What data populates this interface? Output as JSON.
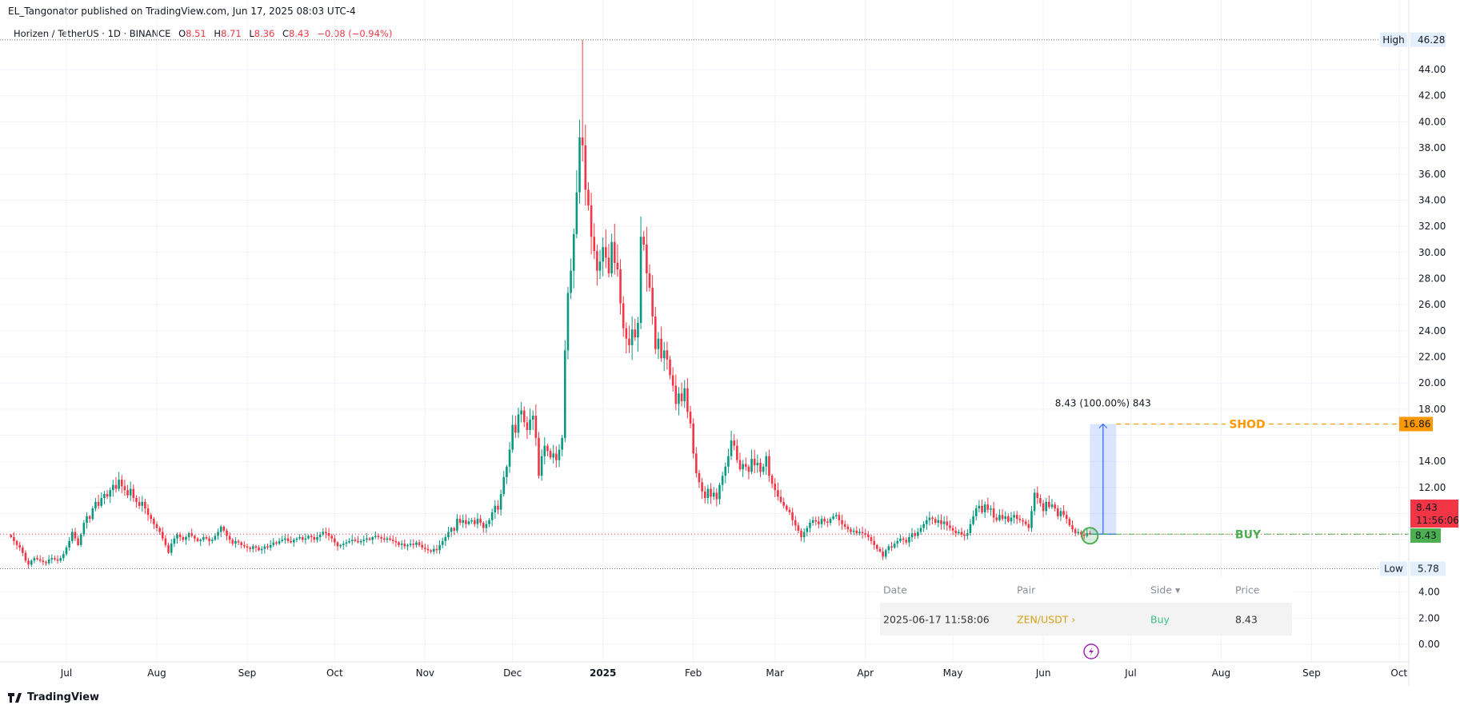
{
  "publisher_line": "EL_Tangonator published on TradingView.com, Jun 17, 2025 08:03 UTC-4",
  "legend": {
    "symbol": "Horizen / TetherUS · 1D · BINANCE",
    "open_label": "O",
    "open": "8.51",
    "high_label": "H",
    "high": "8.71",
    "low_label": "L",
    "low": "8.36",
    "close_label": "C",
    "close": "8.43",
    "change": "−0.08 (−0.94%)"
  },
  "colors": {
    "up": "#089981",
    "down": "#f23645",
    "target": "#ff9800",
    "buy": "#4caf50",
    "measure": "#2962ff",
    "grid": "#f0f3fa"
  },
  "chart_data": {
    "type": "candlestick",
    "title": "Horizen / TetherUS · 1D · BINANCE",
    "ylim": [
      0,
      46.28
    ],
    "y_tick_step": 2,
    "y_tick_max": 44,
    "grid": true,
    "x_ticks": [
      {
        "label": "Jul",
        "date": "2024-07-01"
      },
      {
        "label": "Aug",
        "date": "2024-08-01"
      },
      {
        "label": "Sep",
        "date": "2024-09-01"
      },
      {
        "label": "Oct",
        "date": "2024-10-01"
      },
      {
        "label": "Nov",
        "date": "2024-11-01"
      },
      {
        "label": "Dec",
        "date": "2024-12-01"
      },
      {
        "label": "2025",
        "date": "2025-01-01"
      },
      {
        "label": "Feb",
        "date": "2025-02-01"
      },
      {
        "label": "Mar",
        "date": "2025-03-01"
      },
      {
        "label": "Apr",
        "date": "2025-04-01"
      },
      {
        "label": "May",
        "date": "2025-05-01"
      },
      {
        "label": "Jun",
        "date": "2025-06-01"
      },
      {
        "label": "Jul",
        "date": "2025-07-01"
      },
      {
        "label": "Aug",
        "date": "2025-08-01"
      },
      {
        "label": "Sep",
        "date": "2025-09-01"
      },
      {
        "label": "Oct",
        "date": "2025-10-01"
      }
    ],
    "daily_closes_by_month": [
      {
        "month": "2024-06",
        "from_day": 12,
        "close": [
          8.2,
          7.9,
          7.6,
          7.4,
          7.0,
          6.4,
          6.1,
          6.4,
          6.6,
          6.5,
          6.4,
          6.3,
          6.2,
          6.5,
          6.6,
          6.5,
          6.4,
          6.6,
          6.9
        ]
      },
      {
        "month": "2024-07",
        "from_day": 1,
        "close": [
          7.4,
          7.9,
          8.6,
          8.1,
          7.6,
          8.4,
          9.3,
          9.8,
          9.6,
          10.4,
          10.9,
          10.6,
          11.2,
          11.5,
          11.3,
          11.8,
          12.2,
          11.9,
          12.6,
          12.1,
          11.8,
          11.4,
          11.9,
          11.2,
          10.9,
          10.6,
          10.9,
          10.4,
          9.9,
          9.6,
          9.2
        ]
      },
      {
        "month": "2024-08",
        "from_day": 1,
        "close": [
          8.9,
          8.6,
          8.1,
          7.6,
          7.0,
          7.7,
          8.1,
          8.4,
          8.2,
          8.0,
          8.2,
          8.5,
          8.3,
          8.1,
          7.9,
          8.0,
          8.2,
          8.1,
          7.9,
          8.0,
          8.3,
          8.6,
          9.0,
          8.7,
          8.3,
          8.0,
          7.7,
          7.9,
          7.8,
          7.6,
          7.5
        ]
      },
      {
        "month": "2024-09",
        "from_day": 1,
        "close": [
          7.4,
          7.3,
          7.5,
          7.4,
          7.2,
          7.3,
          7.5,
          7.4,
          7.6,
          7.8,
          7.7,
          7.9,
          8.0,
          8.1,
          7.9,
          7.8,
          8.0,
          8.1,
          8.2,
          8.0,
          8.1,
          8.3,
          8.2,
          8.0,
          8.2,
          8.4,
          8.6,
          8.5,
          8.3,
          8.1
        ]
      },
      {
        "month": "2024-10",
        "from_day": 1,
        "close": [
          7.8,
          7.5,
          7.6,
          7.7,
          7.8,
          7.9,
          8.0,
          7.9,
          7.8,
          7.9,
          8.0,
          8.1,
          8.0,
          8.2,
          8.3,
          8.2,
          8.1,
          8.0,
          8.1,
          8.0,
          7.9,
          7.8,
          7.6,
          7.7,
          7.5,
          7.6,
          7.7,
          7.6,
          7.8,
          7.6,
          7.4
        ]
      },
      {
        "month": "2024-11",
        "from_day": 1,
        "close": [
          7.3,
          7.2,
          7.1,
          7.3,
          7.2,
          7.6,
          7.9,
          8.2,
          8.6,
          8.9,
          8.7,
          9.6,
          9.3,
          9.5,
          9.2,
          9.4,
          9.5,
          9.2,
          9.6,
          9.3,
          8.9,
          9.2,
          9.5,
          10.1,
          10.6,
          10.3,
          11.5,
          12.8,
          13.6,
          14.9
        ]
      },
      {
        "month": "2024-12",
        "from_day": 1,
        "close": [
          16.8,
          16.2,
          17.6,
          17.9,
          17.0,
          16.4,
          17.2,
          17.5,
          15.8,
          12.9,
          14.4,
          15.2,
          14.8,
          14.3,
          14.6,
          14.1,
          14.9,
          15.8,
          22.5,
          26.9,
          28.6,
          31.4,
          34.6,
          38.8,
          38.2,
          34.8,
          33.6,
          31.2,
          30.1,
          28.6,
          29.3
        ]
      },
      {
        "month": "2025-01",
        "from_day": 1,
        "close": [
          30.4,
          29.6,
          28.4,
          30.8,
          29.2,
          28.7,
          26.1,
          24.2,
          23.4,
          22.9,
          24.1,
          23.5,
          24.6,
          31.2,
          30.6,
          28.4,
          27.3,
          25.1,
          22.6,
          23.4,
          21.9,
          22.5,
          21.8,
          20.6,
          19.8,
          18.4,
          19.2,
          18.6,
          19.6,
          17.8,
          16.9
        ]
      },
      {
        "month": "2025-02",
        "from_day": 1,
        "close": [
          14.6,
          13.1,
          12.4,
          11.7,
          11.2,
          11.9,
          11.3,
          11.6,
          11.1,
          12.2,
          12.9,
          13.6,
          14.4,
          15.6,
          15.2,
          14.1,
          13.4,
          13.8,
          13.6,
          13.2,
          14.2,
          13.7,
          13.9,
          13.2,
          13.6,
          14.4,
          12.9,
          12.3
        ]
      },
      {
        "month": "2025-03",
        "from_day": 1,
        "close": [
          11.8,
          11.3,
          10.9,
          10.6,
          10.3,
          10.1,
          9.5,
          9.1,
          8.7,
          8.2,
          8.6,
          8.9,
          9.3,
          9.5,
          9.4,
          9.2,
          9.6,
          9.4,
          9.3,
          9.6,
          9.8,
          9.9,
          9.5,
          9.2,
          9.0,
          8.8,
          8.6,
          8.7,
          8.5,
          8.6,
          8.5
        ]
      },
      {
        "month": "2025-04",
        "from_day": 1,
        "close": [
          8.4,
          8.2,
          7.9,
          7.6,
          7.3,
          7.1,
          6.7,
          7.2,
          7.5,
          7.4,
          7.7,
          7.9,
          8.1,
          8.0,
          7.8,
          8.2,
          8.5,
          8.3,
          8.6,
          8.9,
          9.2,
          9.5,
          9.7,
          9.6,
          9.3,
          9.5,
          9.2,
          9.4,
          9.1,
          8.9
        ]
      },
      {
        "month": "2025-05",
        "from_day": 1,
        "close": [
          8.7,
          8.5,
          8.6,
          8.4,
          8.3,
          8.5,
          9.2,
          9.8,
          10.4,
          10.6,
          10.1,
          10.7,
          10.3,
          10.4,
          9.7,
          9.5,
          9.9,
          9.6,
          9.8,
          9.4,
          9.7,
          9.9,
          9.6,
          9.5,
          9.4,
          9.2,
          8.9,
          10.2,
          11.6,
          11.2,
          10.8
        ]
      },
      {
        "month": "2025-06",
        "from_day": 1,
        "close": [
          10.2,
          10.9,
          10.5,
          10.7,
          10.4,
          9.8,
          10.2,
          9.9,
          9.6,
          9.1,
          8.8,
          8.5,
          8.6,
          8.4,
          8.3,
          8.51,
          8.43
        ]
      }
    ],
    "last_candle": {
      "date": "2025-06-17",
      "open": 8.51,
      "high": 8.71,
      "low": 8.36,
      "close": 8.43
    },
    "extremes": {
      "high": {
        "label": "High",
        "value": 46.28,
        "date": "2024-12-25"
      },
      "low": {
        "label": "Low",
        "value": 5.78,
        "date": "2024-06-18"
      }
    },
    "current_price": {
      "value": 8.43,
      "label": "8.43",
      "countdown": "11:56:06"
    },
    "annotations": {
      "target_line": {
        "label": "SHOD",
        "price": 16.86,
        "price_label": "16.86"
      },
      "buy_line": {
        "label": "BUY",
        "price": 8.43,
        "price_label": "8.43",
        "date": "2025-06-17"
      },
      "measure": {
        "label": "8.43 (100.00%) 843",
        "from_price": 8.43,
        "to_price": 16.86,
        "from_date": "2025-06-17",
        "to_date": "2025-06-26"
      }
    }
  },
  "trade_table": {
    "headers": {
      "date": "Date",
      "pair": "Pair",
      "side": "Side ▾",
      "price": "Price"
    },
    "row": {
      "date": "2025-06-17 11:58:06",
      "pair": "ZEN/USDT ›",
      "side": "Buy",
      "price": "8.43"
    }
  },
  "footer": {
    "logo_text": "TradingView",
    "icon": "tradingview-logo-icon"
  },
  "icons": {
    "event": "lightning-icon"
  }
}
